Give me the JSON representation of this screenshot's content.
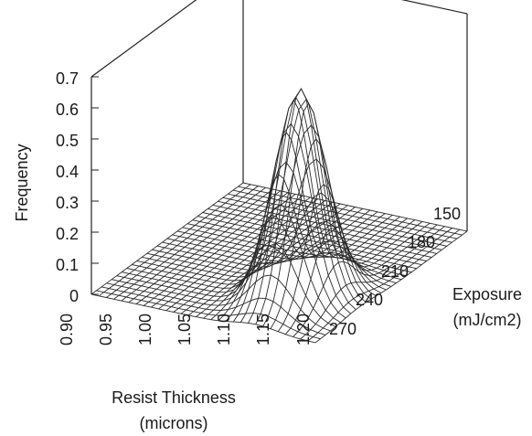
{
  "chart_data": {
    "type": "surface",
    "zlabel": "Frequency",
    "xlabel_line1": "Resist Thickness",
    "xlabel_line2": "(microns)",
    "ylabel_line1": "Exposure",
    "ylabel_line2": "(mJ/cm2)",
    "z_ticks": [
      "0",
      "0.1",
      "0.2",
      "0.3",
      "0.4",
      "0.5",
      "0.6",
      "0.7"
    ],
    "x_ticks": [
      "0.90",
      "0.95",
      "1.00",
      "1.05",
      "1.10",
      "1.15",
      "1.20"
    ],
    "y_ticks": [
      "150",
      "180",
      "210",
      "240",
      "270"
    ],
    "x_range": [
      0.9,
      1.2
    ],
    "y_range": [
      150,
      270
    ],
    "z_range": [
      0,
      0.7
    ],
    "peak": {
      "resist_thickness": 1.12,
      "exposure": 185,
      "frequency": 0.67
    },
    "spread": {
      "resist_thickness": 0.028,
      "exposure": 13
    },
    "grid": {
      "thickness_lines": 31,
      "exposure_lines": 31
    }
  }
}
